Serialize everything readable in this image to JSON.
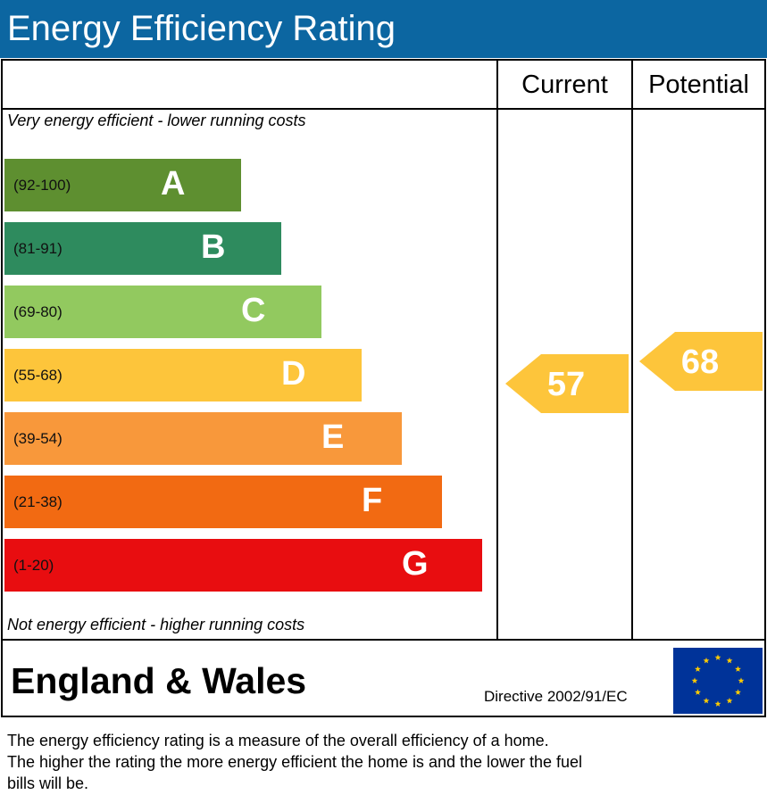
{
  "title": "Energy Efficiency Rating",
  "columns": {
    "current": "Current",
    "potential": "Potential"
  },
  "captions": {
    "top": "Very energy efficient - lower running costs",
    "bottom": "Not energy efficient - higher running costs"
  },
  "chart_data": {
    "type": "bar",
    "title": "Energy Efficiency Rating",
    "bands": [
      {
        "letter": "A",
        "range": "(92-100)",
        "min": 92,
        "max": 100,
        "color": "#5e8f30"
      },
      {
        "letter": "B",
        "range": "(81-91)",
        "min": 81,
        "max": 91,
        "color": "#2e8b5e"
      },
      {
        "letter": "C",
        "range": "(69-80)",
        "min": 69,
        "max": 80,
        "color": "#92c95f"
      },
      {
        "letter": "D",
        "range": "(55-68)",
        "min": 55,
        "max": 68,
        "color": "#fdc53b"
      },
      {
        "letter": "E",
        "range": "(39-54)",
        "min": 39,
        "max": 54,
        "color": "#f8983b"
      },
      {
        "letter": "F",
        "range": "(21-38)",
        "min": 21,
        "max": 38,
        "color": "#f26a12"
      },
      {
        "letter": "G",
        "range": "(1-20)",
        "min": 1,
        "max": 20,
        "color": "#e80d10"
      }
    ],
    "current": {
      "value": 57,
      "label": "57",
      "color": "#fdc53b"
    },
    "potential": {
      "value": 68,
      "label": "68",
      "color": "#fdc53b"
    }
  },
  "footer": {
    "region": "England & Wales",
    "directive": "Directive 2002/91/EC",
    "flag_icon": "eu-flag-icon",
    "flag_color": "#003399",
    "star_color": "#ffcc00"
  },
  "description": {
    "line1": "The energy efficiency rating is a measure of the overall efficiency of a home.",
    "line2": "The higher the rating the more energy efficient the home is and the lower the fuel",
    "line3": "bills will be."
  }
}
